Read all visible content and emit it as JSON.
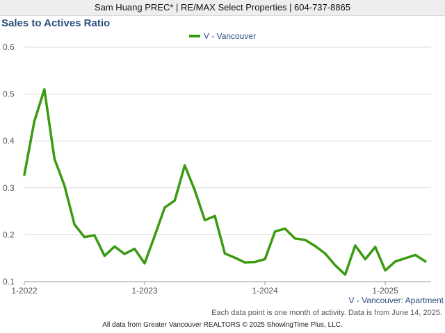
{
  "header": {
    "text": "Sam Huang PREC* | RE/MAX Select Properties | 604-737-8865"
  },
  "colors": {
    "line": "#3a9a10",
    "title": "#2a4e7c",
    "grid": "#d9d9d9",
    "header_bg": "#eeeeee"
  },
  "chart_data": {
    "type": "line",
    "title": "Sales to Actives Ratio",
    "xlabel": "",
    "ylabel": "",
    "ylim": [
      0.1,
      0.6
    ],
    "y_ticks": [
      "0.1",
      "0.2",
      "0.3",
      "0.4",
      "0.5",
      "0.6"
    ],
    "x_ticks": [
      "1-2022",
      "1-2023",
      "1-2024",
      "1-2025"
    ],
    "grid": true,
    "legend_position": "top-center",
    "subtitle": "V - Vancouver: Apartment",
    "series": [
      {
        "name": "V - Vancouver",
        "color": "#3a9a10",
        "x": [
          "1-2022",
          "2-2022",
          "3-2022",
          "4-2022",
          "5-2022",
          "6-2022",
          "7-2022",
          "8-2022",
          "9-2022",
          "10-2022",
          "11-2022",
          "12-2022",
          "1-2023",
          "2-2023",
          "3-2023",
          "4-2023",
          "5-2023",
          "6-2023",
          "7-2023",
          "8-2023",
          "9-2023",
          "10-2023",
          "11-2023",
          "12-2023",
          "1-2024",
          "2-2024",
          "3-2024",
          "4-2024",
          "5-2024",
          "6-2024",
          "7-2024",
          "8-2024",
          "9-2024",
          "10-2024",
          "11-2024",
          "12-2024",
          "1-2025",
          "2-2025",
          "3-2025",
          "4-2025",
          "5-2025"
        ],
        "values": [
          0.328,
          0.442,
          0.51,
          0.362,
          0.305,
          0.222,
          0.195,
          0.199,
          0.155,
          0.175,
          0.159,
          0.17,
          0.139,
          0.198,
          0.258,
          0.273,
          0.348,
          0.295,
          0.231,
          0.24,
          0.16,
          0.151,
          0.141,
          0.142,
          0.148,
          0.207,
          0.213,
          0.192,
          0.189,
          0.176,
          0.16,
          0.135,
          0.115,
          0.177,
          0.148,
          0.174,
          0.124,
          0.143,
          0.15,
          0.157,
          0.143
        ]
      }
    ]
  },
  "footnote": "Each data point is one month of activity. Data is from June 14, 2025.",
  "copyright": "All data from Greater Vancouver REALTORS © 2025 ShowingTime Plus, LLC."
}
